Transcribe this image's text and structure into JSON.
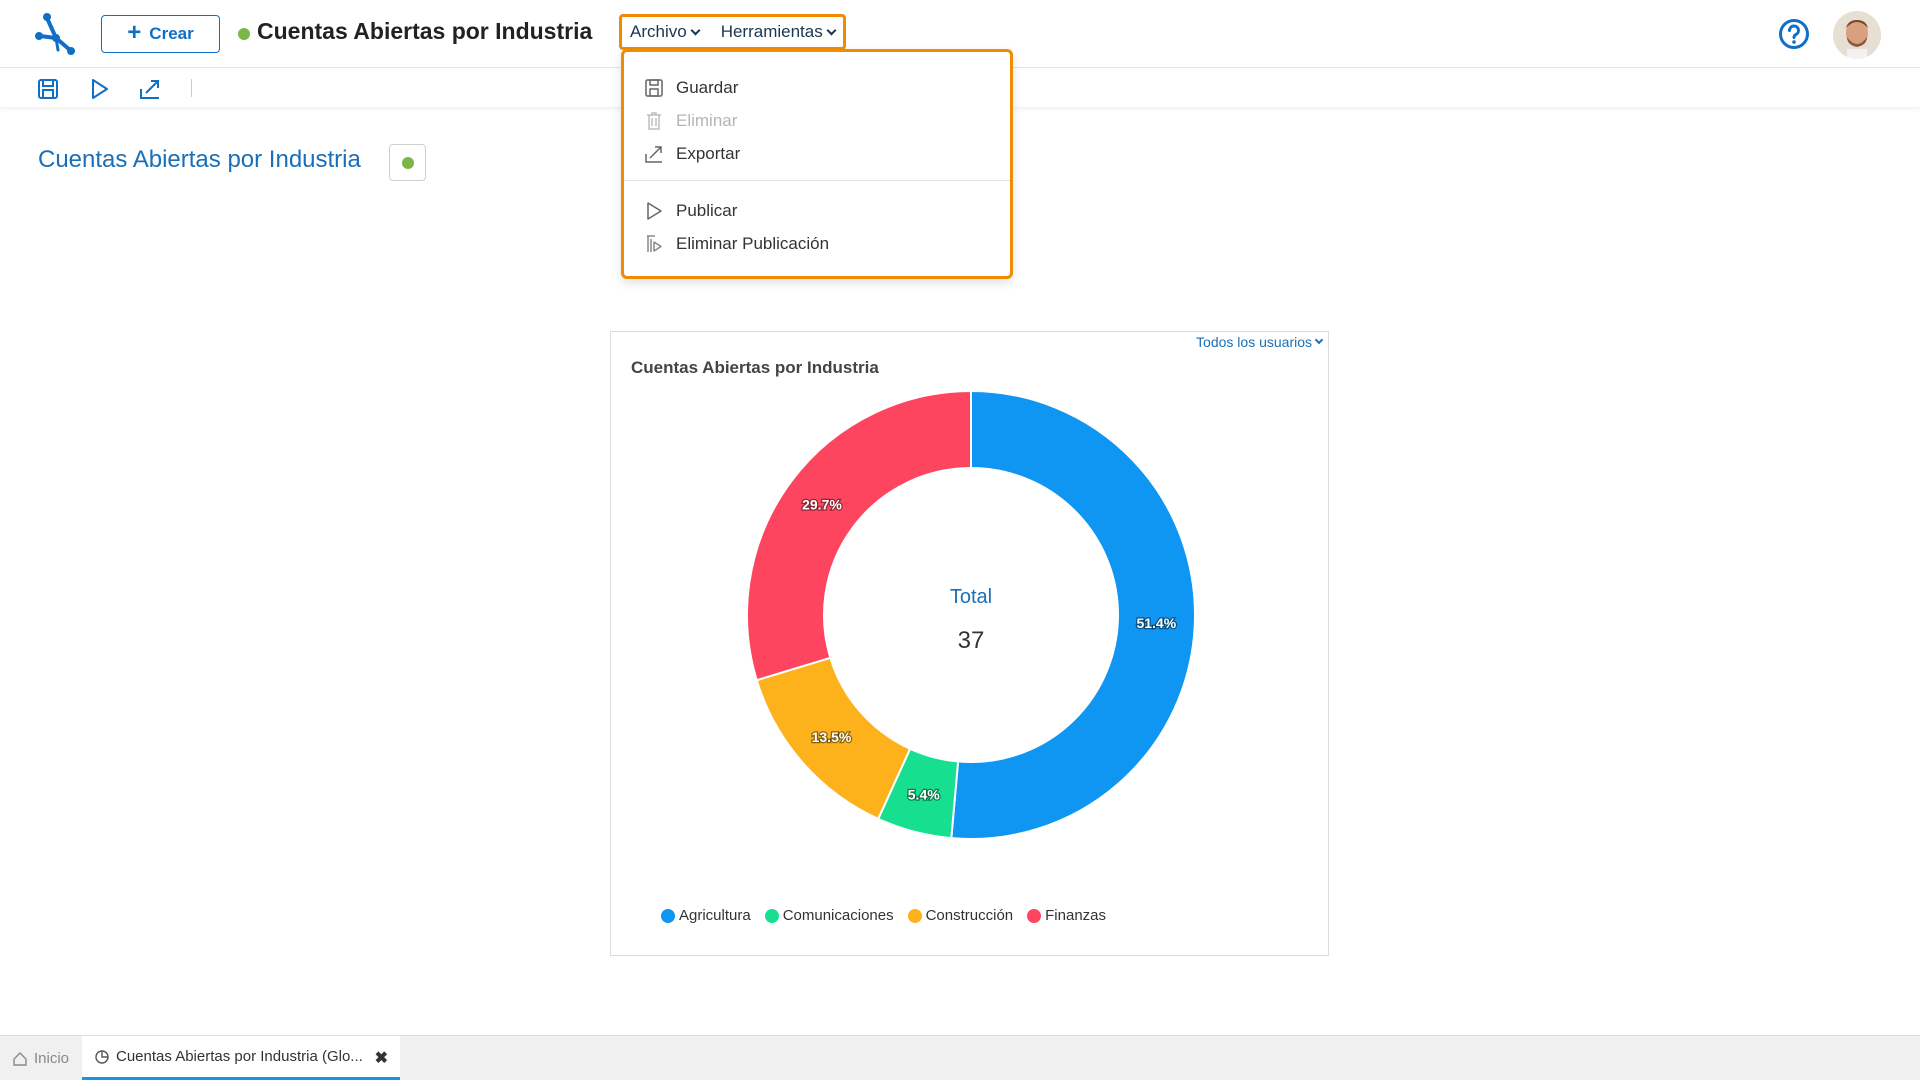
{
  "header": {
    "create_label": "Crear",
    "title": "Cuentas Abiertas por Industria",
    "menus": [
      {
        "label": "Archivo"
      },
      {
        "label": "Herramientas"
      }
    ]
  },
  "file_menu": {
    "items": [
      {
        "label": "Guardar",
        "icon": "save-icon",
        "enabled": true
      },
      {
        "label": "Eliminar",
        "icon": "trash-icon",
        "enabled": false
      },
      {
        "label": "Exportar",
        "icon": "export-icon",
        "enabled": true
      },
      {
        "label": "Publicar",
        "icon": "play-icon",
        "enabled": true
      },
      {
        "label": "Eliminar Publicación",
        "icon": "unpublish-icon",
        "enabled": true
      }
    ]
  },
  "section": {
    "title": "Cuentas Abiertas por Industria"
  },
  "card": {
    "filter_label": "Todos los usuarios",
    "center_label": "Total",
    "center_value": "37"
  },
  "chart_data": {
    "type": "pie",
    "title": "Cuentas Abiertas por Industria",
    "categories": [
      "Agricultura",
      "Comunicaciones",
      "Construcción",
      "Finanzas"
    ],
    "values": [
      51.4,
      5.4,
      13.5,
      29.7
    ],
    "labels": [
      "51.4%",
      "5.4%",
      "13.5%",
      "29.7%"
    ],
    "colors": [
      "#0f95f2",
      "#16e08f",
      "#fdb11b",
      "#fe4560"
    ],
    "legend": "bottom",
    "donut": true
  },
  "colors": {
    "accent": "#1a6fb8",
    "highlight": "#f08c00",
    "status": "#7ab648"
  },
  "bottom_tabs": [
    {
      "label": "Inicio"
    },
    {
      "label": "Cuentas Abiertas por Industria (Glo..."
    }
  ]
}
